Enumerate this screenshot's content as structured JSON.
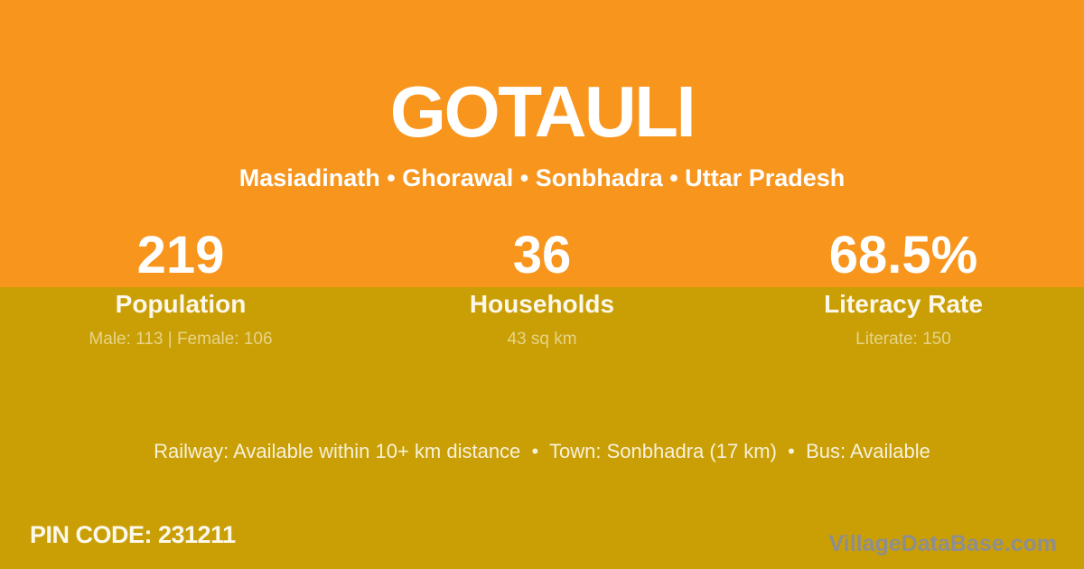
{
  "theme": {
    "band_top_color": "#F8951D",
    "band_bottom_color": "#C99F05",
    "value_text_color": "#FFFFFF",
    "label_text_color": "#FCF7EA",
    "detail_text_color": "#E7D488",
    "amenities_text_color": "#F8F1DA",
    "pin_text_color": "#FCF8EC",
    "watermark_text_color": "#8E8E90"
  },
  "header": {
    "title": "GOTAULI",
    "subtitle": "Masiadinath • Ghorawal • Sonbhadra • Uttar Pradesh"
  },
  "stats": [
    {
      "value": "219",
      "label": "Population",
      "detail": "Male: 113 | Female: 106"
    },
    {
      "value": "36",
      "label": "Households",
      "detail": "43 sq km"
    },
    {
      "value": "68.5%",
      "label": "Literacy Rate",
      "detail": "Literate: 150"
    }
  ],
  "amenities": {
    "text": "Railway: Available within 10+ km distance  •  Town: Sonbhadra (17 km)  •  Bus: Available"
  },
  "footer": {
    "pin_code": "PIN CODE: 231211",
    "watermark": "VillageDataBase.com"
  }
}
